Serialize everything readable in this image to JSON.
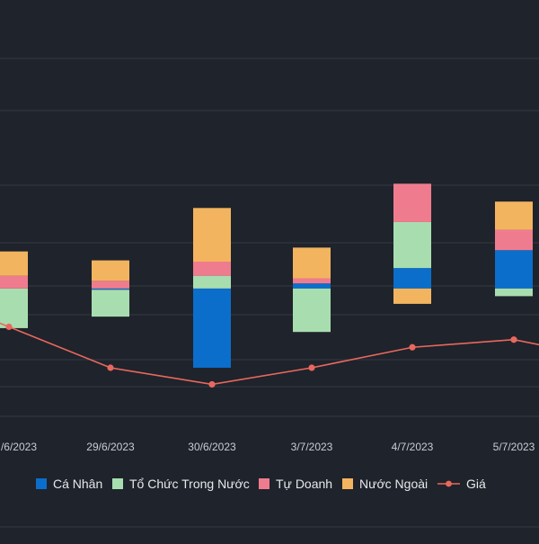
{
  "colors": {
    "background": "#1f232b",
    "grid": "#343a46",
    "axis_label": "#c9ccd3",
    "legend_text": "#e6e8ec",
    "ca_nhan": "#0b6ecb",
    "to_chuc_trong_nuoc": "#a8ddb0",
    "tu_doanh": "#ef7c8e",
    "nuoc_ngoai": "#f3b45f",
    "gia": "#e9685e"
  },
  "chart_data": {
    "type": "bar",
    "stacked": true,
    "categories": [
      "/6/2023",
      "29/6/2023",
      "30/6/2023",
      "3/7/2023",
      "4/7/2023",
      "5/7/2023"
    ],
    "series": [
      {
        "name": "Cá Nhân",
        "key": "ca_nhan",
        "values": [
          0,
          -1,
          -62,
          4,
          16,
          30
        ]
      },
      {
        "name": "Tổ Chức Trong Nước",
        "key": "to_chuc_trong_nuoc",
        "values": [
          -31,
          -21,
          10,
          -34,
          36,
          -6
        ]
      },
      {
        "name": "Tự Doanh",
        "key": "tu_doanh",
        "values": [
          10,
          6,
          11,
          4,
          30,
          16
        ]
      },
      {
        "name": "Nước Ngoài",
        "key": "nuoc_ngoai",
        "values": [
          19,
          16,
          42,
          24,
          -12,
          22
        ]
      }
    ],
    "line": {
      "name": "Giá",
      "key": "gia",
      "values": [
        -30,
        -62,
        -75,
        -62,
        -46,
        -40
      ]
    },
    "ylim": [
      -100,
      180
    ],
    "grid": true,
    "legend_position": "bottom"
  }
}
